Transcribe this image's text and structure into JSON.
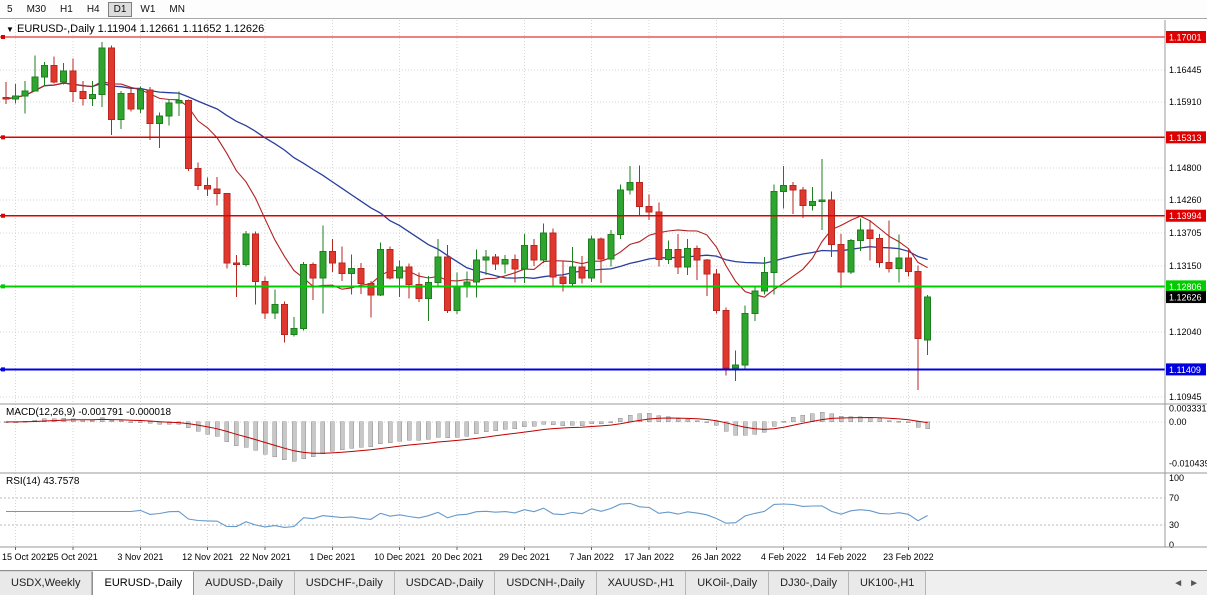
{
  "toolbar": {
    "timeframes": [
      "5",
      "M30",
      "H1",
      "H4",
      "D1",
      "W1",
      "MN"
    ],
    "active": "D1"
  },
  "header": {
    "icon": "▼",
    "symbol": "EURUSD-,Daily",
    "ohlc": "1.11904 1.12661 1.11652 1.12626"
  },
  "macd_label": {
    "name": "MACD(12,26,9)",
    "values": "-0.001791 -0.000018"
  },
  "rsi_label": {
    "name": "RSI(14)",
    "value": "43.7578"
  },
  "tabs": {
    "scroll_left": "◄",
    "scroll_right": "►",
    "items": [
      {
        "label": "USDX,Weekly",
        "active": false
      },
      {
        "label": "EURUSD-,Daily",
        "active": true
      },
      {
        "label": "AUDUSD-,Daily",
        "active": false
      },
      {
        "label": "USDCHF-,Daily",
        "active": false
      },
      {
        "label": "USDCAD-,Daily",
        "active": false
      },
      {
        "label": "USDCNH-,Daily",
        "active": false
      },
      {
        "label": "XAUUSD-,H1",
        "active": false
      },
      {
        "label": "UKOil-,Daily",
        "active": false
      },
      {
        "label": "DJ30-,Daily",
        "active": false
      },
      {
        "label": "UK100-,H1",
        "active": false
      }
    ]
  },
  "colors": {
    "up": "#1e7f1e",
    "up_fill": "#2fa52f",
    "down": "#b8271f",
    "down_fill": "#e0382e",
    "ma_fast": "#b22222",
    "ma_slow": "#2a3e9e",
    "hline_red": "#de0000",
    "hline_green": "#00cc00",
    "hline_blue": "#0000e0",
    "grid": "#d6d6d6",
    "axis_line": "#9a9a9a",
    "tick_text": "#000000",
    "macd_bar": "#c8c8c8",
    "macd_bar_edge": "#8f8f8f",
    "macd_signal": "#c00000",
    "rsi": "#6699cc",
    "price_chip": "#000000",
    "chip_text": "#ffffff"
  },
  "chart_data": {
    "type": "candlestick",
    "symbol": "EURUSD-",
    "timeframe": "Daily",
    "title": "EURUSD-,Daily",
    "ohlc_display": {
      "open": 1.11904,
      "high": 1.12661,
      "low": 1.11652,
      "close": 1.12626
    },
    "current_price": "1.12626",
    "price_range": {
      "max": 1.17287,
      "min": 1.10827
    },
    "y_ticks": [
      "1.16445",
      "1.15910",
      "1.14800",
      "1.14260",
      "1.13705",
      "1.13150",
      "1.12040",
      "1.10945"
    ],
    "hlines": [
      {
        "price": "1.17001",
        "value": 1.17001,
        "color": "#de0000",
        "width": 1.4
      },
      {
        "price": "1.15313",
        "value": 1.15313,
        "color": "#de0000",
        "width": 1.4
      },
      {
        "price": "1.13994",
        "value": 1.13994,
        "color": "#de0000",
        "width": 1.4
      },
      {
        "price": "1.12806",
        "value": 1.12806,
        "color": "#00cc00",
        "width": 2
      },
      {
        "price": "1.11409",
        "value": 1.11409,
        "color": "#0000e0",
        "width": 2
      }
    ],
    "x_labels": [
      {
        "i": 1,
        "t": "15 Oct 2021"
      },
      {
        "i": 7,
        "t": "25 Oct 2021"
      },
      {
        "i": 14,
        "t": "3 Nov 2021"
      },
      {
        "i": 21,
        "t": "12 Nov 2021"
      },
      {
        "i": 27,
        "t": "22 Nov 2021"
      },
      {
        "i": 34,
        "t": "1 Dec 2021"
      },
      {
        "i": 41,
        "t": "10 Dec 2021"
      },
      {
        "i": 47,
        "t": "20 Dec 2021"
      },
      {
        "i": 54,
        "t": "29 Dec 2021"
      },
      {
        "i": 61,
        "t": "7 Jan 2022"
      },
      {
        "i": 67,
        "t": "17 Jan 2022"
      },
      {
        "i": 74,
        "t": "26 Jan 2022"
      },
      {
        "i": 81,
        "t": "4 Feb 2022"
      },
      {
        "i": 87,
        "t": "14 Feb 2022"
      },
      {
        "i": 94,
        "t": "23 Feb 2022"
      }
    ],
    "ma": [
      {
        "period": 10,
        "color": "#b22222"
      },
      {
        "period": 30,
        "color": "#2a3e9e"
      }
    ],
    "indicators": {
      "macd": {
        "label": "MACD(12,26,9)",
        "main_value": "-0.001791",
        "signal_value": "-0.000018",
        "range": [
          -0.0128,
          0.0045
        ],
        "ticks": [
          {
            "v": 0.003331,
            "t": "0.003331"
          },
          {
            "v": 0,
            "t": "0.00"
          },
          {
            "v": -0.010439,
            "t": "-0.010439"
          }
        ]
      },
      "rsi": {
        "label": "RSI(14)",
        "value": "43.7578",
        "ticks": [
          100,
          70,
          30,
          0
        ],
        "levels": [
          70,
          30
        ],
        "range": [
          0,
          100
        ]
      }
    },
    "candles": [
      [
        1.1598,
        1.1624,
        1.1587,
        1.1596
      ],
      [
        1.1596,
        1.1621,
        1.1588,
        1.1601
      ],
      [
        1.1601,
        1.1626,
        1.1571,
        1.1609
      ],
      [
        1.1609,
        1.1669,
        1.1608,
        1.1633
      ],
      [
        1.1633,
        1.1658,
        1.1617,
        1.1652
      ],
      [
        1.1652,
        1.1667,
        1.1622,
        1.1624
      ],
      [
        1.1624,
        1.1656,
        1.162,
        1.1643
      ],
      [
        1.1643,
        1.1664,
        1.1591,
        1.1608
      ],
      [
        1.1608,
        1.1626,
        1.1585,
        1.1597
      ],
      [
        1.1597,
        1.1626,
        1.1584,
        1.1603
      ],
      [
        1.1603,
        1.1692,
        1.1582,
        1.1682
      ],
      [
        1.1682,
        1.1686,
        1.1535,
        1.1561
      ],
      [
        1.1561,
        1.1609,
        1.1545,
        1.1605
      ],
      [
        1.1605,
        1.1614,
        1.1575,
        1.1579
      ],
      [
        1.1579,
        1.1617,
        1.1572,
        1.1611
      ],
      [
        1.1611,
        1.1616,
        1.1527,
        1.1555
      ],
      [
        1.1555,
        1.1573,
        1.1513,
        1.1567
      ],
      [
        1.1567,
        1.1594,
        1.1551,
        1.1589
      ],
      [
        1.1589,
        1.1608,
        1.1567,
        1.1593
      ],
      [
        1.1593,
        1.1595,
        1.1475,
        1.1479
      ],
      [
        1.1479,
        1.1489,
        1.1443,
        1.145
      ],
      [
        1.145,
        1.1464,
        1.1433,
        1.1444
      ],
      [
        1.1444,
        1.1465,
        1.1417,
        1.1437
      ],
      [
        1.1437,
        1.1438,
        1.1311,
        1.132
      ],
      [
        1.132,
        1.1333,
        1.1263,
        1.1317
      ],
      [
        1.1317,
        1.1374,
        1.1314,
        1.1369
      ],
      [
        1.1369,
        1.1373,
        1.125,
        1.1289
      ],
      [
        1.1289,
        1.1297,
        1.1226,
        1.1236
      ],
      [
        1.1236,
        1.1275,
        1.1226,
        1.125
      ],
      [
        1.125,
        1.1255,
        1.1186,
        1.12
      ],
      [
        1.12,
        1.1229,
        1.1196,
        1.121
      ],
      [
        1.121,
        1.1322,
        1.1206,
        1.1317
      ],
      [
        1.1317,
        1.1321,
        1.1258,
        1.1295
      ],
      [
        1.1295,
        1.1383,
        1.1235,
        1.1339
      ],
      [
        1.1339,
        1.136,
        1.1305,
        1.132
      ],
      [
        1.132,
        1.1348,
        1.129,
        1.1302
      ],
      [
        1.1302,
        1.1334,
        1.1267,
        1.1311
      ],
      [
        1.1311,
        1.132,
        1.1268,
        1.1285
      ],
      [
        1.1285,
        1.129,
        1.1228,
        1.1266
      ],
      [
        1.1266,
        1.1354,
        1.1264,
        1.1343
      ],
      [
        1.1343,
        1.1348,
        1.1292,
        1.1295
      ],
      [
        1.1295,
        1.1324,
        1.1263,
        1.1313
      ],
      [
        1.1313,
        1.1319,
        1.126,
        1.1284
      ],
      [
        1.1284,
        1.1304,
        1.1254,
        1.126
      ],
      [
        1.126,
        1.1298,
        1.1222,
        1.1287
      ],
      [
        1.1287,
        1.136,
        1.1282,
        1.133
      ],
      [
        1.133,
        1.135,
        1.1236,
        1.124
      ],
      [
        1.124,
        1.1304,
        1.1234,
        1.128
      ],
      [
        1.128,
        1.1306,
        1.1262,
        1.1288
      ],
      [
        1.1288,
        1.1343,
        1.1262,
        1.1325
      ],
      [
        1.1325,
        1.1342,
        1.13,
        1.133
      ],
      [
        1.133,
        1.1335,
        1.1308,
        1.1318
      ],
      [
        1.1318,
        1.1333,
        1.1302,
        1.1326
      ],
      [
        1.1326,
        1.1334,
        1.1287,
        1.131
      ],
      [
        1.131,
        1.1369,
        1.1286,
        1.1349
      ],
      [
        1.1349,
        1.136,
        1.1315,
        1.1325
      ],
      [
        1.1325,
        1.1386,
        1.132,
        1.137
      ],
      [
        1.137,
        1.1378,
        1.1279,
        1.1296
      ],
      [
        1.1296,
        1.1324,
        1.1272,
        1.1285
      ],
      [
        1.1285,
        1.1347,
        1.128,
        1.1313
      ],
      [
        1.1313,
        1.1332,
        1.1285,
        1.1295
      ],
      [
        1.1295,
        1.1366,
        1.1288,
        1.136
      ],
      [
        1.136,
        1.1363,
        1.1286,
        1.1327
      ],
      [
        1.1327,
        1.1375,
        1.1314,
        1.1368
      ],
      [
        1.1368,
        1.1452,
        1.136,
        1.1443
      ],
      [
        1.1443,
        1.1483,
        1.1435,
        1.1455
      ],
      [
        1.1455,
        1.1484,
        1.1399,
        1.1415
      ],
      [
        1.1415,
        1.1435,
        1.1392,
        1.1406
      ],
      [
        1.1406,
        1.1422,
        1.1314,
        1.1326
      ],
      [
        1.1326,
        1.1358,
        1.1318,
        1.1343
      ],
      [
        1.1343,
        1.1369,
        1.1301,
        1.1313
      ],
      [
        1.1313,
        1.136,
        1.13,
        1.1344
      ],
      [
        1.1344,
        1.1349,
        1.1291,
        1.1325
      ],
      [
        1.1325,
        1.1327,
        1.1264,
        1.1301
      ],
      [
        1.1301,
        1.131,
        1.1235,
        1.124
      ],
      [
        1.124,
        1.1245,
        1.1131,
        1.1143
      ],
      [
        1.1143,
        1.1173,
        1.1121,
        1.1148
      ],
      [
        1.1148,
        1.1248,
        1.1141,
        1.1235
      ],
      [
        1.1235,
        1.1279,
        1.1222,
        1.1273
      ],
      [
        1.1273,
        1.133,
        1.1267,
        1.1304
      ],
      [
        1.1304,
        1.1452,
        1.1267,
        1.144
      ],
      [
        1.144,
        1.1483,
        1.1412,
        1.145
      ],
      [
        1.145,
        1.1456,
        1.1402,
        1.1443
      ],
      [
        1.1443,
        1.1448,
        1.1396,
        1.1417
      ],
      [
        1.1417,
        1.1448,
        1.1408,
        1.1423
      ],
      [
        1.1423,
        1.1495,
        1.1375,
        1.1426
      ],
      [
        1.1426,
        1.144,
        1.133,
        1.1351
      ],
      [
        1.1351,
        1.1369,
        1.1278,
        1.1305
      ],
      [
        1.1305,
        1.136,
        1.1301,
        1.1358
      ],
      [
        1.1358,
        1.1395,
        1.134,
        1.1375
      ],
      [
        1.1375,
        1.1392,
        1.1324,
        1.1361
      ],
      [
        1.1361,
        1.1369,
        1.1312,
        1.1321
      ],
      [
        1.1321,
        1.1391,
        1.1304,
        1.1311
      ],
      [
        1.1311,
        1.1368,
        1.1287,
        1.1328
      ],
      [
        1.1328,
        1.1343,
        1.1297,
        1.1306
      ],
      [
        1.1306,
        1.1316,
        1.1106,
        1.1193
      ],
      [
        1.11904,
        1.12661,
        1.11652,
        1.12626
      ]
    ]
  }
}
